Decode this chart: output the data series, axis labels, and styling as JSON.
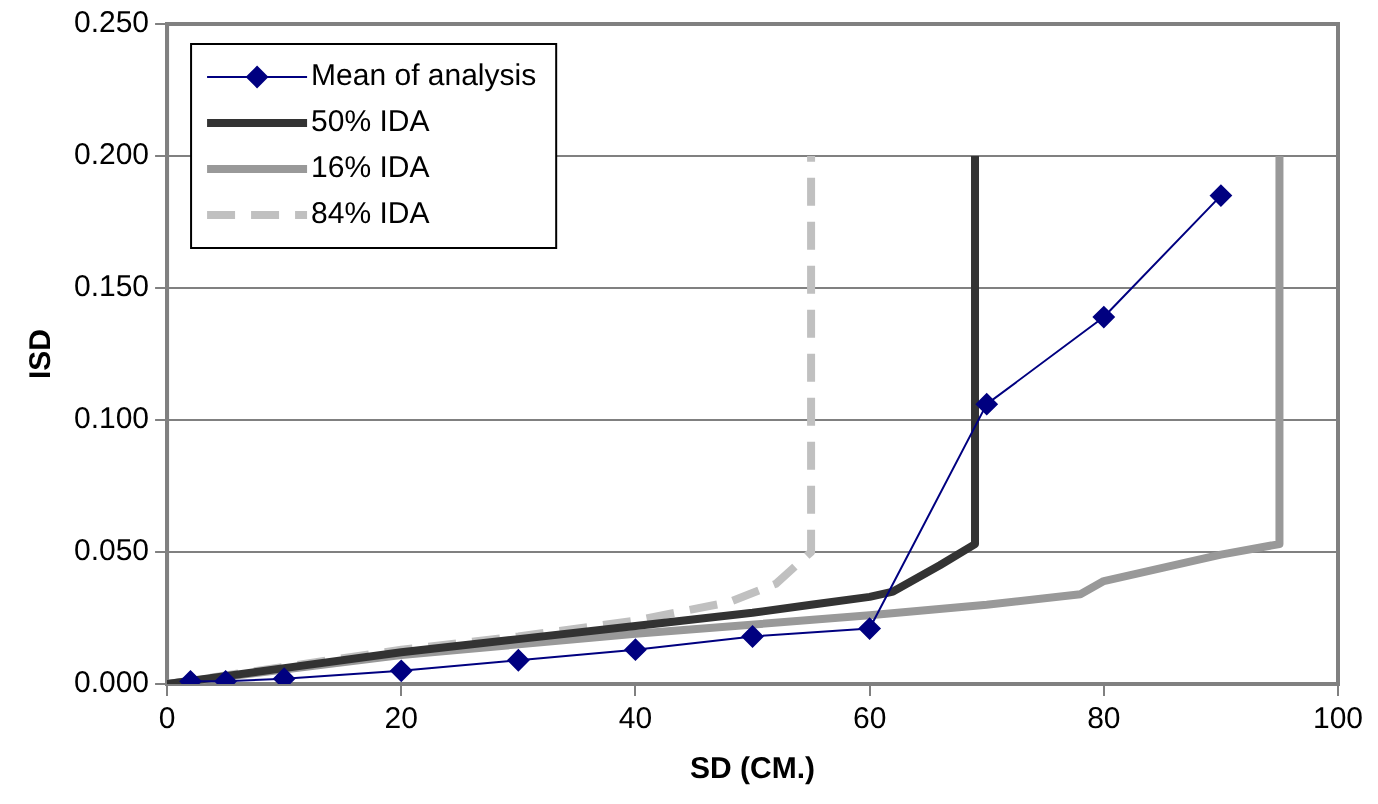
{
  "chart_data": {
    "type": "line",
    "xlabel": "SD (CM.)",
    "ylabel": "ISD",
    "xlim": [
      0,
      100
    ],
    "xticks": [
      0,
      20,
      40,
      60,
      80,
      100
    ],
    "ylim": [
      0,
      0.25
    ],
    "yticks": [
      {
        "value": 0,
        "label": "0.000"
      },
      {
        "value": 0.05,
        "label": "0.050"
      },
      {
        "value": 0.1,
        "label": "0.100"
      },
      {
        "value": 0.15,
        "label": "0.150"
      },
      {
        "value": 0.2,
        "label": "0.200"
      },
      {
        "value": 0.25,
        "label": "0.250"
      }
    ],
    "grid": "y",
    "legend": "top left",
    "series": [
      {
        "name": "Mean of analysis",
        "color": "#000080",
        "marker": "diamond",
        "line_style": "solid",
        "x": [
          2,
          5,
          10,
          20,
          30,
          40,
          50,
          60,
          70,
          80,
          90
        ],
        "values": [
          0.001,
          0.001,
          0.002,
          0.005,
          0.009,
          0.013,
          0.018,
          0.021,
          0.106,
          0.139,
          0.185
        ]
      },
      {
        "name": "50% IDA",
        "color": "#333333",
        "marker": "none",
        "line_style": "solid",
        "x": [
          0,
          10,
          20,
          30,
          40,
          50,
          55,
          60,
          62,
          66,
          69,
          69
        ],
        "values": [
          0,
          0.006,
          0.012,
          0.017,
          0.022,
          0.027,
          0.03,
          0.033,
          0.035,
          0.045,
          0.053,
          0.2
        ]
      },
      {
        "name": "16% IDA",
        "color": "#999999",
        "marker": "none",
        "line_style": "solid",
        "x": [
          0,
          20,
          40,
          60,
          70,
          78,
          80,
          85,
          90,
          95,
          95
        ],
        "values": [
          0,
          0.011,
          0.019,
          0.026,
          0.03,
          0.034,
          0.039,
          0.044,
          0.049,
          0.053,
          0.2
        ]
      },
      {
        "name": "84% IDA",
        "color": "#c0c0c0",
        "marker": "none",
        "line_style": "dashed",
        "x": [
          0,
          20,
          30,
          40,
          48,
          52,
          55,
          55
        ],
        "values": [
          0,
          0.013,
          0.018,
          0.024,
          0.031,
          0.038,
          0.05,
          0.2
        ]
      }
    ]
  }
}
